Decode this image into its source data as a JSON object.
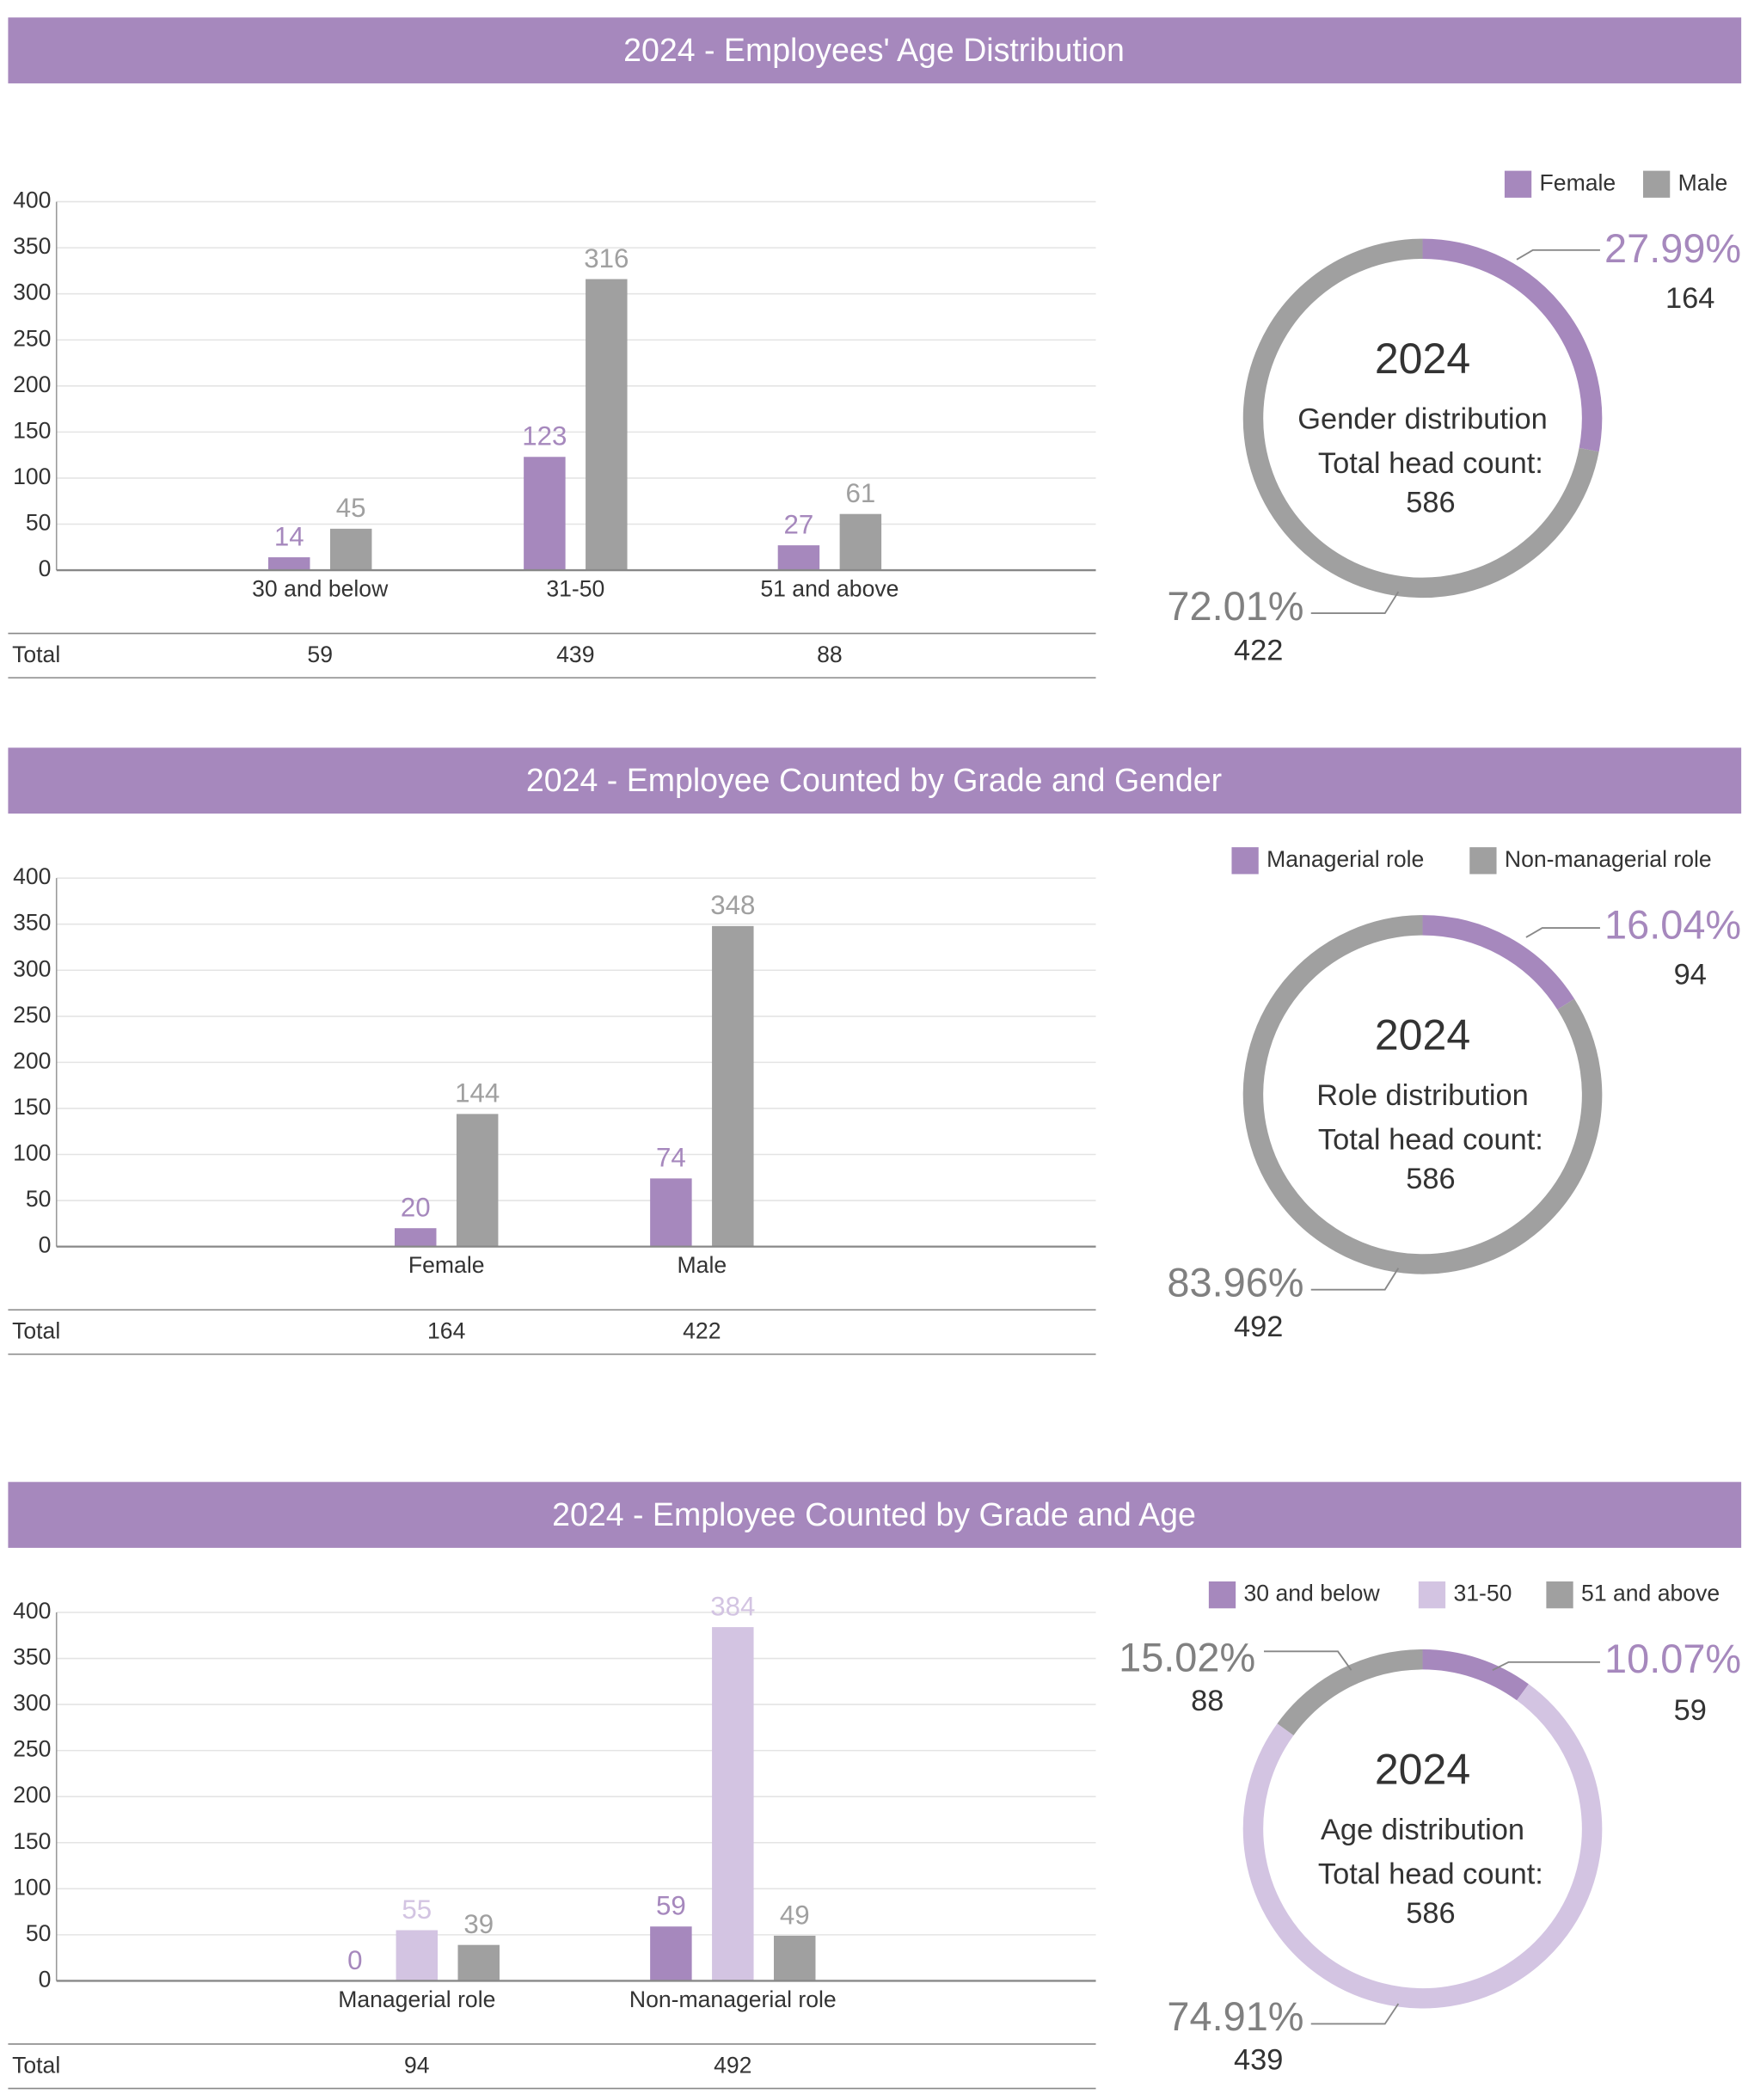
{
  "chart_data": [
    {
      "type": "bar",
      "title": "2024 - Employees' Age Distribution",
      "categories": [
        "30 and below",
        "31-50",
        "51 and above"
      ],
      "series": [
        {
          "color": "#a688bd",
          "values": [
            14,
            123,
            27
          ]
        },
        {
          "color": "#a0a0a0",
          "values": [
            45,
            316,
            61
          ]
        }
      ],
      "ylim": [
        0,
        400
      ],
      "yticks": [
        0,
        50,
        100,
        150,
        200,
        250,
        300,
        350,
        400
      ],
      "grid": true,
      "totals_label": "Total",
      "totals": [
        59,
        439,
        88
      ]
    },
    {
      "type": "donut",
      "categories": [
        "Female",
        "Male"
      ],
      "colors": [
        "#a688bd",
        "#a0a0a0"
      ],
      "values": [
        164,
        422
      ],
      "percent_labels": [
        "27.99%",
        "72.01%"
      ],
      "center_title": "2024",
      "center_label": "Gender distribution",
      "total_label": "Total head count:",
      "total": 586
    },
    {
      "type": "bar",
      "title": "2024 - Employee Counted by Grade and Gender",
      "categories": [
        "Female",
        "Male"
      ],
      "series": [
        {
          "color": "#a688bd",
          "values": [
            20,
            74
          ]
        },
        {
          "color": "#a0a0a0",
          "values": [
            144,
            348
          ]
        }
      ],
      "ylim": [
        0,
        400
      ],
      "yticks": [
        0,
        50,
        100,
        150,
        200,
        250,
        300,
        350,
        400
      ],
      "grid": true,
      "totals_label": "Total",
      "totals": [
        164,
        422
      ]
    },
    {
      "type": "donut",
      "categories": [
        "Managerial role",
        "Non-managerial role"
      ],
      "colors": [
        "#a688bd",
        "#a0a0a0"
      ],
      "values": [
        94,
        492
      ],
      "percent_labels": [
        "16.04%",
        "83.96%"
      ],
      "center_title": "2024",
      "center_label": "Role distribution",
      "total_label": "Total head count:",
      "total": 586
    },
    {
      "type": "bar",
      "title": "2024 - Employee Counted by Grade and Age",
      "categories": [
        "Managerial role",
        "Non-managerial role"
      ],
      "series": [
        {
          "color": "#a688bd",
          "values": [
            0,
            59
          ]
        },
        {
          "color": "#d3c4e2",
          "values": [
            55,
            384
          ]
        },
        {
          "color": "#a0a0a0",
          "values": [
            39,
            49
          ]
        }
      ],
      "ylim": [
        0,
        400
      ],
      "yticks": [
        0,
        50,
        100,
        150,
        200,
        250,
        300,
        350,
        400
      ],
      "grid": true,
      "totals_label": "Total",
      "totals": [
        94,
        492
      ]
    },
    {
      "type": "donut",
      "categories": [
        "30 and below",
        "31-50",
        "51 and above"
      ],
      "colors": [
        "#a688bd",
        "#d3c4e2",
        "#a0a0a0"
      ],
      "values": [
        59,
        439,
        88
      ],
      "percent_labels": [
        "10.07%",
        "74.91%",
        "15.02%"
      ],
      "center_title": "2024",
      "center_label": "Age distribution",
      "total_label": "Total head count:",
      "total": 586
    }
  ]
}
